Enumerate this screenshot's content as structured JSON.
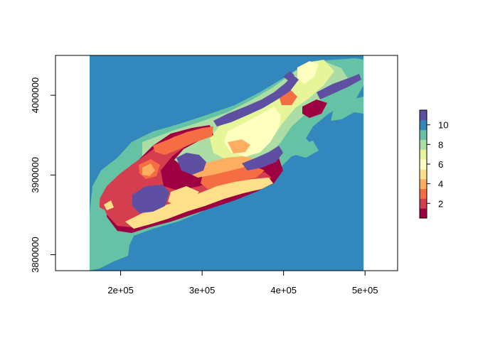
{
  "chart_data": {
    "type": "heatmap",
    "title": "",
    "xlabel": "",
    "ylabel": "",
    "xlim": [
      120000,
      540000
    ],
    "ylim": [
      3780000,
      4050000
    ],
    "x_ticks": [
      {
        "value": 200000,
        "label": "2e+05"
      },
      {
        "value": 300000,
        "label": "3e+05"
      },
      {
        "value": 400000,
        "label": "4e+05"
      },
      {
        "value": 500000,
        "label": "5e+05"
      }
    ],
    "y_ticks": [
      {
        "value": 3800000,
        "label": "3800000"
      },
      {
        "value": 3900000,
        "label": "3900000"
      },
      {
        "value": 4000000,
        "label": "4000000"
      }
    ],
    "raster_extent": {
      "xmin": 160000,
      "xmax": 500000,
      "ymin": 3780000,
      "ymax": 4050000
    },
    "background_value": 10,
    "legend": {
      "placement": "right",
      "range": [
        1,
        11
      ],
      "ticks": [
        {
          "value": 2,
          "label": "2"
        },
        {
          "value": 4,
          "label": "4"
        },
        {
          "value": 6,
          "label": "6"
        },
        {
          "value": 8,
          "label": "8"
        },
        {
          "value": 10,
          "label": "10"
        }
      ]
    },
    "palette": [
      {
        "value": 1,
        "color": "#9e0142"
      },
      {
        "value": 2,
        "color": "#d53e4f"
      },
      {
        "value": 3,
        "color": "#f46d43"
      },
      {
        "value": 4,
        "color": "#fdae61"
      },
      {
        "value": 5,
        "color": "#fee08b"
      },
      {
        "value": 6,
        "color": "#ffffbf"
      },
      {
        "value": 7,
        "color": "#e6f598"
      },
      {
        "value": 8,
        "color": "#abdda4"
      },
      {
        "value": 9,
        "color": "#66c2a5"
      },
      {
        "value": 10,
        "color": "#3288bd"
      },
      {
        "value": 11,
        "color": "#5e4fa2"
      }
    ]
  }
}
